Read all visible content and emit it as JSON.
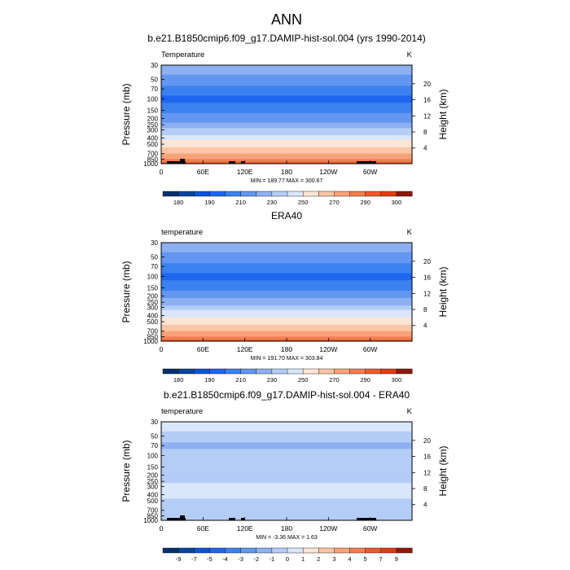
{
  "page_title": "ANN",
  "chart_data": [
    {
      "type": "heatmap",
      "title": "b.e21.B1850cmip6.f09_g17.DAMIP-hist-sol.004 (yrs 1990-2014)",
      "variable_label": "Temperature",
      "units": "K",
      "ylabel": "Pressure (mb)",
      "ylabel_right": "Height (km)",
      "xlabel": "",
      "x_ticks": [
        "0",
        "60E",
        "120E",
        "180",
        "120W",
        "60W"
      ],
      "y_ticks": [
        "30",
        "50",
        "70",
        "100",
        "150",
        "200",
        "250",
        "300",
        "400",
        "500",
        "700",
        "850",
        "1000"
      ],
      "height_ticks": [
        "20",
        "16",
        "12",
        "8",
        "4"
      ],
      "stats": "MIN = 189.77  MAX = 300.67",
      "min": 189.77,
      "max": 300.67,
      "colorbar_ticks": [
        "180",
        "190",
        "210",
        "230",
        "250",
        "270",
        "290",
        "300"
      ],
      "colorbar_levels": [
        180,
        185,
        190,
        200,
        210,
        220,
        230,
        240,
        250,
        260,
        270,
        280,
        290,
        295,
        300
      ],
      "colors": [
        "#08306b",
        "#08459c",
        "#0a55d6",
        "#1f66f0",
        "#3b82f0",
        "#6396f0",
        "#8db0f2",
        "#b3cdf7",
        "#d9e6fb",
        "#fde5d5",
        "#fbc5a6",
        "#f8a279",
        "#f47d4f",
        "#ee5a2a",
        "#e03c12",
        "#8b1a0d"
      ],
      "profile": [
        {
          "p": 30,
          "v": 224
        },
        {
          "p": 50,
          "v": 218
        },
        {
          "p": 70,
          "v": 206
        },
        {
          "p": 100,
          "v": 196
        },
        {
          "p": 150,
          "v": 205
        },
        {
          "p": 200,
          "v": 215
        },
        {
          "p": 250,
          "v": 224
        },
        {
          "p": 300,
          "v": 232
        },
        {
          "p": 400,
          "v": 246
        },
        {
          "p": 500,
          "v": 256
        },
        {
          "p": 700,
          "v": 270
        },
        {
          "p": 850,
          "v": 280
        },
        {
          "p": 1000,
          "v": 293
        }
      ]
    },
    {
      "type": "heatmap",
      "title": "ERA40",
      "variable_label": "temperature",
      "units": "K",
      "ylabel": "Pressure (mb)",
      "ylabel_right": "Height (km)",
      "xlabel": "",
      "x_ticks": [
        "0",
        "60E",
        "120E",
        "180",
        "120W",
        "60W"
      ],
      "y_ticks": [
        "30",
        "50",
        "70",
        "100",
        "150",
        "200",
        "250",
        "300",
        "400",
        "500",
        "700",
        "850",
        "1000"
      ],
      "height_ticks": [
        "20",
        "16",
        "12",
        "8",
        "4"
      ],
      "stats": "MIN = 191.70  MAX = 303.84",
      "min": 191.7,
      "max": 303.84,
      "colorbar_ticks": [
        "180",
        "190",
        "210",
        "230",
        "250",
        "270",
        "290",
        "300"
      ],
      "colorbar_levels": [
        180,
        185,
        190,
        200,
        210,
        220,
        230,
        240,
        250,
        260,
        270,
        280,
        290,
        295,
        300
      ],
      "colors": [
        "#08306b",
        "#08459c",
        "#0a55d6",
        "#1f66f0",
        "#3b82f0",
        "#6396f0",
        "#8db0f2",
        "#b3cdf7",
        "#d9e6fb",
        "#fde5d5",
        "#fbc5a6",
        "#f8a279",
        "#f47d4f",
        "#ee5a2a",
        "#e03c12",
        "#8b1a0d"
      ],
      "profile": [
        {
          "p": 30,
          "v": 224
        },
        {
          "p": 50,
          "v": 218
        },
        {
          "p": 70,
          "v": 207
        },
        {
          "p": 100,
          "v": 198
        },
        {
          "p": 150,
          "v": 206
        },
        {
          "p": 200,
          "v": 216
        },
        {
          "p": 250,
          "v": 225
        },
        {
          "p": 300,
          "v": 233
        },
        {
          "p": 400,
          "v": 247
        },
        {
          "p": 500,
          "v": 257
        },
        {
          "p": 700,
          "v": 271
        },
        {
          "p": 850,
          "v": 281
        },
        {
          "p": 1000,
          "v": 294
        }
      ]
    },
    {
      "type": "heatmap",
      "title": "b.e21.B1850cmip6.f09_g17.DAMIP-hist-sol.004 - ERA40",
      "variable_label": "temperature",
      "units": "K",
      "ylabel": "Pressure (mb)",
      "ylabel_right": "Height (km)",
      "xlabel": "",
      "x_ticks": [
        "0",
        "60E",
        "120E",
        "180",
        "120W",
        "60W"
      ],
      "y_ticks": [
        "30",
        "50",
        "70",
        "100",
        "150",
        "200",
        "250",
        "300",
        "400",
        "500",
        "700",
        "850",
        "1000"
      ],
      "height_ticks": [
        "20",
        "16",
        "12",
        "8",
        "4"
      ],
      "stats": "MIN = -3.36  MAX =  1.63",
      "min": -3.36,
      "max": 1.63,
      "colorbar_ticks": [
        "-9",
        "-7",
        "-5",
        "-4",
        "-3",
        "-2",
        "-1",
        "0",
        "1",
        "2",
        "3",
        "4",
        "5",
        "7",
        "9"
      ],
      "colorbar_levels": [
        -9,
        -7,
        -5,
        -4,
        -3,
        -2,
        -1,
        0,
        1,
        2,
        3,
        4,
        5,
        7,
        9
      ],
      "colors": [
        "#08306b",
        "#08459c",
        "#0a55d6",
        "#1f66f0",
        "#3b82f0",
        "#6396f0",
        "#8db0f2",
        "#b3cdf7",
        "#d9e6fb",
        "#fde5d5",
        "#fbc5a6",
        "#f8a279",
        "#f47d4f",
        "#ee5a2a",
        "#e03c12",
        "#8b1a0d"
      ],
      "profile": [
        {
          "p": 30,
          "v": 0.5
        },
        {
          "p": 50,
          "v": -0.5
        },
        {
          "p": 70,
          "v": -1.5
        },
        {
          "p": 100,
          "v": -0.5
        },
        {
          "p": 150,
          "v": -0.5
        },
        {
          "p": 200,
          "v": -0.5
        },
        {
          "p": 250,
          "v": -0.5
        },
        {
          "p": 300,
          "v": 0.5
        },
        {
          "p": 400,
          "v": 0.5
        },
        {
          "p": 500,
          "v": -0.5
        },
        {
          "p": 700,
          "v": -0.5
        },
        {
          "p": 850,
          "v": -0.5
        },
        {
          "p": 1000,
          "v": -0.5
        }
      ]
    }
  ]
}
